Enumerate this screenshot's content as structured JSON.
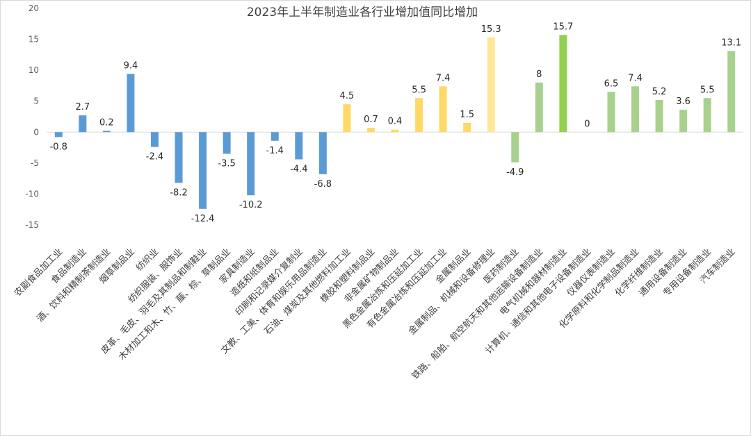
{
  "chart_data": {
    "type": "bar",
    "title": "2023年上半年制造业各行业增加值同比增加",
    "xlabel": "",
    "ylabel": "",
    "ylim": [
      -15,
      20
    ],
    "yticks": [
      20,
      15,
      10,
      5,
      0,
      -5,
      -10,
      -15
    ],
    "grid": false,
    "legend": "none",
    "categories": [
      "农副食品加工业",
      "食品制造业",
      "酒、饮料和精制茶制造业",
      "烟草制品业",
      "纺织业",
      "纺织服装、服饰业",
      "皮革、毛皮、羽毛及其制品和制鞋业",
      "木材加工和木、竹、藤、棕、草制品业",
      "家具制造业",
      "造纸和纸制品业",
      "印刷和记录媒介复制业",
      "文教、工美、体育和娱乐用品制造业",
      "石油、煤炭及其他燃料加工业",
      "橡胶和塑料制品业",
      "非金属矿物制品业",
      "黑色金属冶炼和压延加工业",
      "有色金属冶炼和压延加工业",
      "金属制品业",
      "金属制品、机械和设备修理业",
      "医药制造业",
      "铁路、船舶、航空航天和其他运输设备制造业",
      "电气机械和器材制造业",
      "计算机、通信和其他电子设备制造业",
      "仪器仪表制造业",
      "化学原料和化学制品制造业",
      "化学纤维制造业",
      "通用设备制造业",
      "专用设备制造业",
      "汽车制造业"
    ],
    "values": [
      -0.8,
      2.7,
      0.2,
      9.4,
      -2.4,
      -8.2,
      -12.4,
      -3.5,
      -10.2,
      -1.4,
      -4.4,
      -6.8,
      4.5,
      0.7,
      0.4,
      5.5,
      7.4,
      1.5,
      15.3,
      -4.9,
      8,
      15.7,
      0,
      6.5,
      7.4,
      5.2,
      3.6,
      5.5,
      13.1
    ],
    "data_labels": [
      "-0.8",
      "2.7",
      "0.2",
      "9.4",
      "-2.4",
      "-8.2",
      "-12.4",
      "-3.5",
      "-10.2",
      "-1.4",
      "-4.4",
      "-6.8",
      "4.5",
      "0.7",
      "0.4",
      "5.5",
      "7.4",
      "1.5",
      "15.3",
      "-4.9",
      "8",
      "15.7",
      "0",
      "6.5",
      "7.4",
      "5.2",
      "3.6",
      "5.5",
      "13.1"
    ],
    "colors": [
      "#5b9bd5",
      "#5b9bd5",
      "#5b9bd5",
      "#5b9bd5",
      "#5b9bd5",
      "#5b9bd5",
      "#5b9bd5",
      "#5b9bd5",
      "#5b9bd5",
      "#5b9bd5",
      "#5b9bd5",
      "#5b9bd5",
      "#ffd966",
      "#ffd966",
      "#ffd966",
      "#ffd966",
      "#ffd966",
      "#ffd966",
      "#ffe699",
      "#a9d18e",
      "#a9d18e",
      "#92d050",
      "#a9d18e",
      "#a9d18e",
      "#a9d18e",
      "#a9d18e",
      "#a9d18e",
      "#a9d18e",
      "#a9d18e"
    ]
  }
}
